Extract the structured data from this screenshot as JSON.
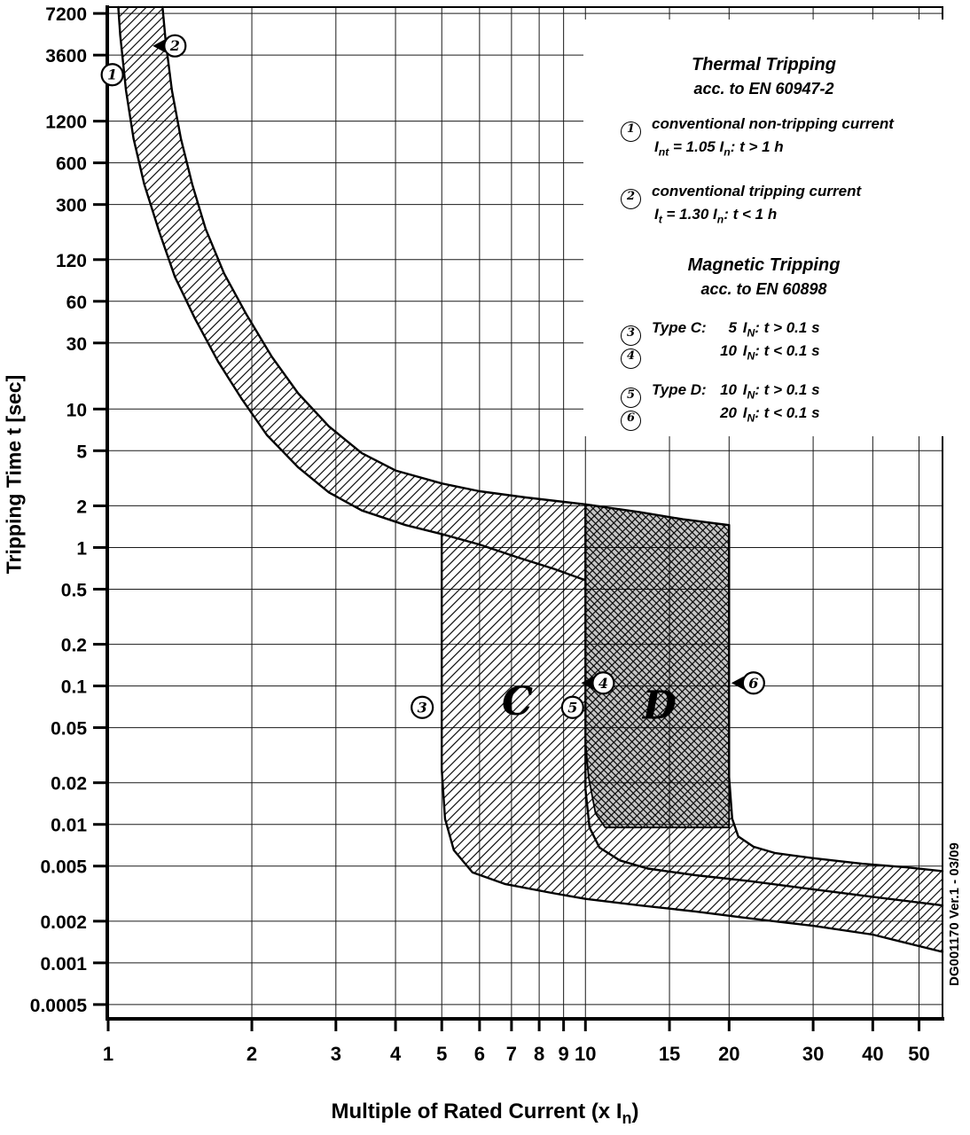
{
  "figure": {
    "y_axis_title": "Tripping Time t [sec]",
    "x_axis_title_pre": "Multiple of Rated Current (x I",
    "x_axis_title_sub": "n",
    "x_axis_title_post": ")",
    "side_code": "DG001170 Ver.1 - 03/09"
  },
  "legend": {
    "thermal_title": "Thermal Tripping",
    "thermal_subtitle": "acc. to EN 60947-2",
    "thermal_items": [
      {
        "num": "1",
        "desc": "conventional non-tripping current",
        "f_pre": "I",
        "f_sub": "nt",
        "f_mid": " = 1.05 I",
        "f_sub2": "n",
        "f_post": ":  t > 1 h"
      },
      {
        "num": "2",
        "desc": "conventional tripping current",
        "f_pre": "I",
        "f_sub": "t",
        "f_mid": " = 1.30 I",
        "f_sub2": "n",
        "f_post": ":  t < 1 h"
      }
    ],
    "magnetic_title": "Magnetic Tripping",
    "magnetic_subtitle": "acc. to EN 60898",
    "magnetic_items": [
      {
        "num": "3",
        "type": "Type C:",
        "v_num": "5",
        "v_i": " I",
        "v_sub": "N",
        "v_post": ": t > 0.1 s"
      },
      {
        "num": "4",
        "type": "",
        "v_num": "10",
        "v_i": " I",
        "v_sub": "N",
        "v_post": ": t < 0.1 s"
      },
      {
        "num": "5",
        "type": "Type D:",
        "v_num": "10",
        "v_i": " I",
        "v_sub": "N",
        "v_post": ": t > 0.1 s"
      },
      {
        "num": "6",
        "type": "",
        "v_num": "20",
        "v_i": " I",
        "v_sub": "N",
        "v_post": ": t < 0.1 s"
      }
    ]
  },
  "chart_data": {
    "type": "line",
    "title": "",
    "xlabel": "Multiple of Rated Current (x In)",
    "ylabel": "Tripping Time t [sec]",
    "x_scale": "log",
    "y_scale": "log",
    "xlim": [
      1,
      56
    ],
    "ylim": [
      0.0004,
      8000
    ],
    "grid": true,
    "legend_position": "top-right",
    "x_ticks": [
      "1",
      "2",
      "3",
      "4",
      "5",
      "6",
      "7",
      "8",
      "9",
      "10",
      "15",
      "20",
      "30",
      "40",
      "50"
    ],
    "y_ticks": [
      "7200",
      "3600",
      "1200",
      "600",
      "300",
      "120",
      "60",
      "30",
      "10",
      "5",
      "2",
      "1",
      "0.5",
      "0.2",
      "0.1",
      "0.05",
      "0.02",
      "0.01",
      "0.005",
      "0.002",
      "0.001",
      "0.0005"
    ],
    "series": [
      {
        "name": "thermal-lower-1-05-in",
        "points": [
          [
            1.05,
            8000
          ],
          [
            1.06,
            5000
          ],
          [
            1.09,
            2000
          ],
          [
            1.13,
            900
          ],
          [
            1.19,
            420
          ],
          [
            1.28,
            190
          ],
          [
            1.38,
            90
          ],
          [
            1.52,
            45
          ],
          [
            1.7,
            22
          ],
          [
            1.9,
            12
          ],
          [
            2.15,
            6.5
          ],
          [
            2.5,
            3.8
          ],
          [
            2.9,
            2.5
          ],
          [
            3.4,
            1.85
          ],
          [
            4.2,
            1.45
          ],
          [
            5,
            1.25
          ],
          [
            6,
            1.05
          ],
          [
            7.2,
            0.85
          ],
          [
            8.6,
            0.7
          ],
          [
            10,
            0.58
          ]
        ]
      },
      {
        "name": "thermal-upper-1-30-in",
        "points": [
          [
            1.3,
            8000
          ],
          [
            1.32,
            4500
          ],
          [
            1.36,
            2000
          ],
          [
            1.42,
            900
          ],
          [
            1.5,
            420
          ],
          [
            1.6,
            200
          ],
          [
            1.75,
            95
          ],
          [
            1.95,
            48
          ],
          [
            2.2,
            24
          ],
          [
            2.5,
            13
          ],
          [
            2.9,
            7.5
          ],
          [
            3.4,
            4.8
          ],
          [
            4,
            3.6
          ],
          [
            5,
            2.9
          ],
          [
            6,
            2.55
          ],
          [
            7.5,
            2.3
          ],
          [
            10,
            2.05
          ],
          [
            13,
            1.8
          ],
          [
            16,
            1.6
          ],
          [
            20,
            1.45
          ]
        ]
      },
      {
        "name": "magnetic-c-min-5-in",
        "points": [
          [
            5,
            1.25
          ],
          [
            5,
            0.025
          ],
          [
            5.08,
            0.011
          ],
          [
            5.3,
            0.0065
          ],
          [
            5.8,
            0.0045
          ],
          [
            6.8,
            0.0037
          ],
          [
            8.5,
            0.0032
          ],
          [
            10,
            0.0029
          ],
          [
            13,
            0.0026
          ],
          [
            17,
            0.00235
          ],
          [
            22,
            0.0021
          ],
          [
            30,
            0.00185
          ],
          [
            40,
            0.0016
          ],
          [
            56,
            0.0012
          ]
        ]
      },
      {
        "name": "magnetic-vertical-10-in",
        "points": [
          [
            10,
            2.05
          ],
          [
            10,
            0.018
          ]
        ]
      },
      {
        "name": "magnetic-d-min-10-in",
        "points": [
          [
            10,
            0.018
          ],
          [
            10.2,
            0.0095
          ],
          [
            10.7,
            0.0068
          ],
          [
            11.8,
            0.0055
          ],
          [
            13.5,
            0.0048
          ],
          [
            17,
            0.0043
          ],
          [
            22,
            0.0039
          ],
          [
            30,
            0.0034
          ],
          [
            40,
            0.003
          ],
          [
            56,
            0.0026
          ]
        ]
      },
      {
        "name": "magnetic-d-max-20-in",
        "points": [
          [
            20,
            1.45
          ],
          [
            20,
            0.022
          ],
          [
            20.3,
            0.011
          ],
          [
            20.9,
            0.0082
          ],
          [
            22.5,
            0.0069
          ],
          [
            25,
            0.0062
          ],
          [
            30,
            0.0057
          ],
          [
            38,
            0.0052
          ],
          [
            47,
            0.0049
          ],
          [
            56,
            0.0046
          ]
        ]
      }
    ],
    "regions": {
      "band_light": [
        [
          1.05,
          8000
        ],
        [
          1.06,
          5000
        ],
        [
          1.09,
          2000
        ],
        [
          1.13,
          900
        ],
        [
          1.19,
          420
        ],
        [
          1.28,
          190
        ],
        [
          1.38,
          90
        ],
        [
          1.52,
          45
        ],
        [
          1.7,
          22
        ],
        [
          1.9,
          12
        ],
        [
          2.15,
          6.5
        ],
        [
          2.5,
          3.8
        ],
        [
          2.9,
          2.5
        ],
        [
          3.4,
          1.85
        ],
        [
          4.2,
          1.45
        ],
        [
          5,
          1.25
        ],
        [
          5,
          0.025
        ],
        [
          5.08,
          0.011
        ],
        [
          5.3,
          0.0065
        ],
        [
          5.8,
          0.0045
        ],
        [
          6.8,
          0.0037
        ],
        [
          8.5,
          0.0032
        ],
        [
          10,
          0.0029
        ],
        [
          13,
          0.0026
        ],
        [
          17,
          0.00235
        ],
        [
          22,
          0.0021
        ],
        [
          30,
          0.00185
        ],
        [
          40,
          0.0016
        ],
        [
          56,
          0.0012
        ],
        [
          56,
          0.0046
        ],
        [
          47,
          0.0049
        ],
        [
          38,
          0.0052
        ],
        [
          30,
          0.0057
        ],
        [
          25,
          0.0062
        ],
        [
          22.5,
          0.0069
        ],
        [
          20.9,
          0.0082
        ],
        [
          20.3,
          0.011
        ],
        [
          20,
          0.022
        ],
        [
          20,
          1.45
        ],
        [
          16,
          1.6
        ],
        [
          13,
          1.8
        ],
        [
          10,
          2.05
        ],
        [
          7.5,
          2.3
        ],
        [
          6,
          2.55
        ],
        [
          5,
          2.9
        ],
        [
          4,
          3.6
        ],
        [
          3.4,
          4.8
        ],
        [
          2.9,
          7.5
        ],
        [
          2.5,
          13
        ],
        [
          2.2,
          24
        ],
        [
          1.95,
          48
        ],
        [
          1.75,
          95
        ],
        [
          1.6,
          200
        ],
        [
          1.5,
          420
        ],
        [
          1.42,
          900
        ],
        [
          1.36,
          2000
        ],
        [
          1.32,
          4500
        ],
        [
          1.3,
          8000
        ]
      ],
      "type_d_dark": [
        [
          10,
          2.05
        ],
        [
          13,
          1.8
        ],
        [
          16,
          1.6
        ],
        [
          20,
          1.45
        ],
        [
          20,
          0.0095
        ],
        [
          11,
          0.0095
        ],
        [
          10.5,
          0.012
        ],
        [
          10.15,
          0.022
        ],
        [
          10,
          0.04
        ]
      ]
    },
    "markers": [
      {
        "label": "1",
        "x": 1.02,
        "t": 2600,
        "arrow": false
      },
      {
        "label": "2",
        "x": 1.38,
        "t": 4200,
        "arrow": true
      },
      {
        "label": "3",
        "x": 4.55,
        "t": 0.07,
        "arrow": false
      },
      {
        "label": "5",
        "x": 9.4,
        "t": 0.07,
        "arrow": false
      },
      {
        "label": "4",
        "x": 10.9,
        "t": 0.105,
        "arrow": true
      },
      {
        "label": "6",
        "x": 22.5,
        "t": 0.105,
        "arrow": true
      }
    ],
    "region_labels": [
      {
        "text": "C",
        "x": 7.2,
        "t": 0.062
      },
      {
        "text": "D",
        "x": 14.3,
        "t": 0.058
      }
    ]
  }
}
